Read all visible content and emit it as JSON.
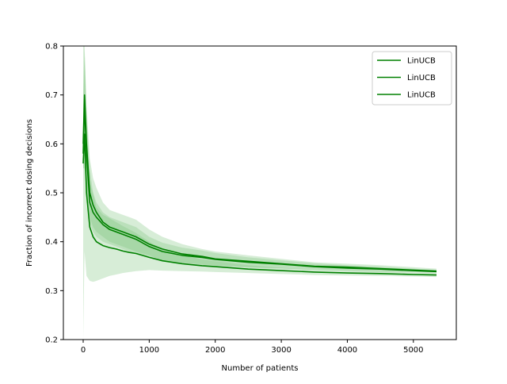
{
  "chart_data": {
    "type": "line",
    "title": "",
    "xlabel": "Number of patients",
    "ylabel": "Fraction of incorrect dosing decisions",
    "xlim": [
      -300,
      5650
    ],
    "ylim": [
      0.2,
      0.8
    ],
    "x_ticks": [
      0,
      1000,
      2000,
      3000,
      4000,
      5000
    ],
    "y_ticks": [
      0.2,
      0.3,
      0.4,
      0.5,
      0.6,
      0.7,
      0.8
    ],
    "grid": false,
    "legend_position": "top-right",
    "line_color": "#008000",
    "band_color": "#7cc47c",
    "x": [
      0,
      20,
      50,
      100,
      150,
      200,
      300,
      400,
      500,
      600,
      700,
      800,
      1000,
      1200,
      1500,
      1800,
      2000,
      2500,
      3000,
      3500,
      4000,
      4500,
      5000,
      5350
    ],
    "series": [
      {
        "name": "LinUCB",
        "values": [
          0.6,
          0.7,
          0.6,
          0.5,
          0.475,
          0.46,
          0.44,
          0.43,
          0.425,
          0.42,
          0.415,
          0.41,
          0.395,
          0.385,
          0.375,
          0.37,
          0.365,
          0.36,
          0.355,
          0.35,
          0.348,
          0.345,
          0.342,
          0.34
        ],
        "lower": [
          0.55,
          0.55,
          0.5,
          0.44,
          0.42,
          0.41,
          0.4,
          0.395,
          0.39,
          0.385,
          0.38,
          0.375,
          0.37,
          0.36,
          0.355,
          0.352,
          0.35,
          0.347,
          0.345,
          0.342,
          0.34,
          0.338,
          0.337,
          0.336
        ],
        "upper": [
          0.7,
          0.8,
          0.68,
          0.57,
          0.53,
          0.51,
          0.48,
          0.465,
          0.46,
          0.455,
          0.45,
          0.445,
          0.425,
          0.41,
          0.395,
          0.385,
          0.38,
          0.372,
          0.365,
          0.358,
          0.355,
          0.352,
          0.348,
          0.345
        ]
      },
      {
        "name": "LinUCB",
        "values": [
          0.58,
          0.68,
          0.58,
          0.48,
          0.46,
          0.45,
          0.435,
          0.425,
          0.42,
          0.415,
          0.41,
          0.405,
          0.39,
          0.38,
          0.372,
          0.368,
          0.364,
          0.358,
          0.354,
          0.349,
          0.346,
          0.344,
          0.341,
          0.339
        ],
        "lower": [
          0.55,
          0.56,
          0.52,
          0.45,
          0.43,
          0.42,
          0.41,
          0.4,
          0.395,
          0.39,
          0.385,
          0.38,
          0.372,
          0.362,
          0.357,
          0.354,
          0.352,
          0.348,
          0.346,
          0.343,
          0.341,
          0.339,
          0.338,
          0.337
        ],
        "upper": [
          0.65,
          0.78,
          0.65,
          0.52,
          0.5,
          0.48,
          0.46,
          0.45,
          0.445,
          0.44,
          0.435,
          0.43,
          0.41,
          0.398,
          0.388,
          0.382,
          0.377,
          0.368,
          0.362,
          0.356,
          0.352,
          0.349,
          0.345,
          0.342
        ]
      },
      {
        "name": "LinUCB",
        "values": [
          0.56,
          0.62,
          0.5,
          0.43,
          0.41,
          0.4,
          0.392,
          0.388,
          0.385,
          0.381,
          0.378,
          0.376,
          0.368,
          0.361,
          0.355,
          0.351,
          0.349,
          0.344,
          0.341,
          0.338,
          0.336,
          0.335,
          0.333,
          0.332
        ],
        "lower": [
          0.2,
          0.38,
          0.33,
          0.32,
          0.318,
          0.32,
          0.325,
          0.33,
          0.333,
          0.336,
          0.338,
          0.34,
          0.342,
          0.341,
          0.34,
          0.339,
          0.338,
          0.336,
          0.334,
          0.332,
          0.331,
          0.33,
          0.329,
          0.328
        ],
        "upper": [
          0.8,
          0.8,
          0.66,
          0.55,
          0.5,
          0.47,
          0.455,
          0.448,
          0.44,
          0.432,
          0.425,
          0.418,
          0.4,
          0.385,
          0.372,
          0.364,
          0.36,
          0.352,
          0.347,
          0.343,
          0.341,
          0.339,
          0.337,
          0.336
        ]
      }
    ]
  }
}
